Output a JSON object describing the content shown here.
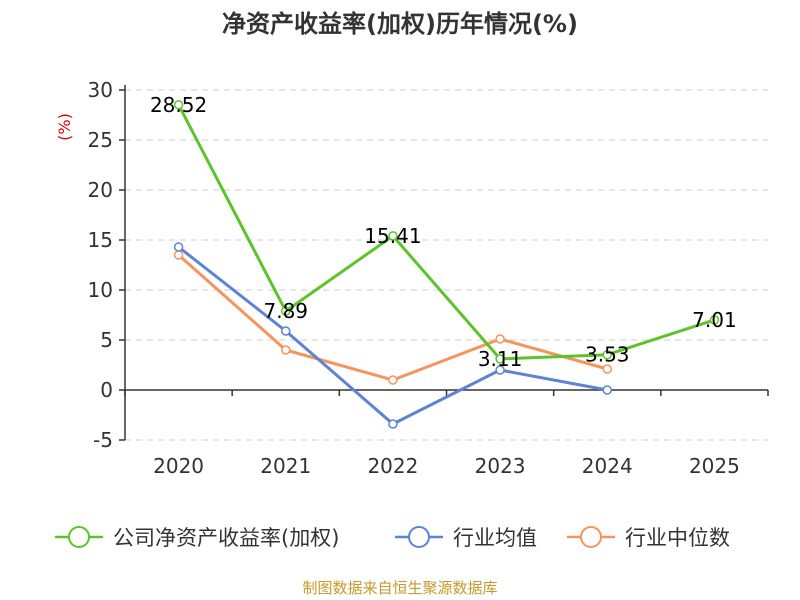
{
  "chart_data": {
    "type": "line",
    "title": "净资产收益率(加权)历年情况(%)",
    "ylabel": "(%)",
    "ylim": [
      -5,
      30
    ],
    "yticks": [
      30,
      25,
      20,
      15,
      10,
      5,
      0,
      -5
    ],
    "categories": [
      "2020",
      "2021",
      "2022",
      "2023",
      "2024",
      "2025"
    ],
    "series": [
      {
        "name": "公司净资产收益率(加权)",
        "color": "#5cc42a",
        "values": [
          28.52,
          7.89,
          15.41,
          3.11,
          3.53,
          7.01
        ],
        "labels": [
          "28.52",
          "7.89",
          "15.41",
          "3.11",
          "3.53",
          "7.01"
        ]
      },
      {
        "name": "行业均值",
        "color": "#5b83d6",
        "values": [
          14.3,
          5.9,
          -3.4,
          2.0,
          0.0,
          null
        ]
      },
      {
        "name": "行业中位数",
        "color": "#f5945c",
        "values": [
          13.5,
          4.0,
          1.0,
          5.1,
          2.1,
          null
        ]
      }
    ],
    "legend_position": "bottom",
    "grid": true,
    "source": "制图数据来自恒生聚源数据库"
  }
}
